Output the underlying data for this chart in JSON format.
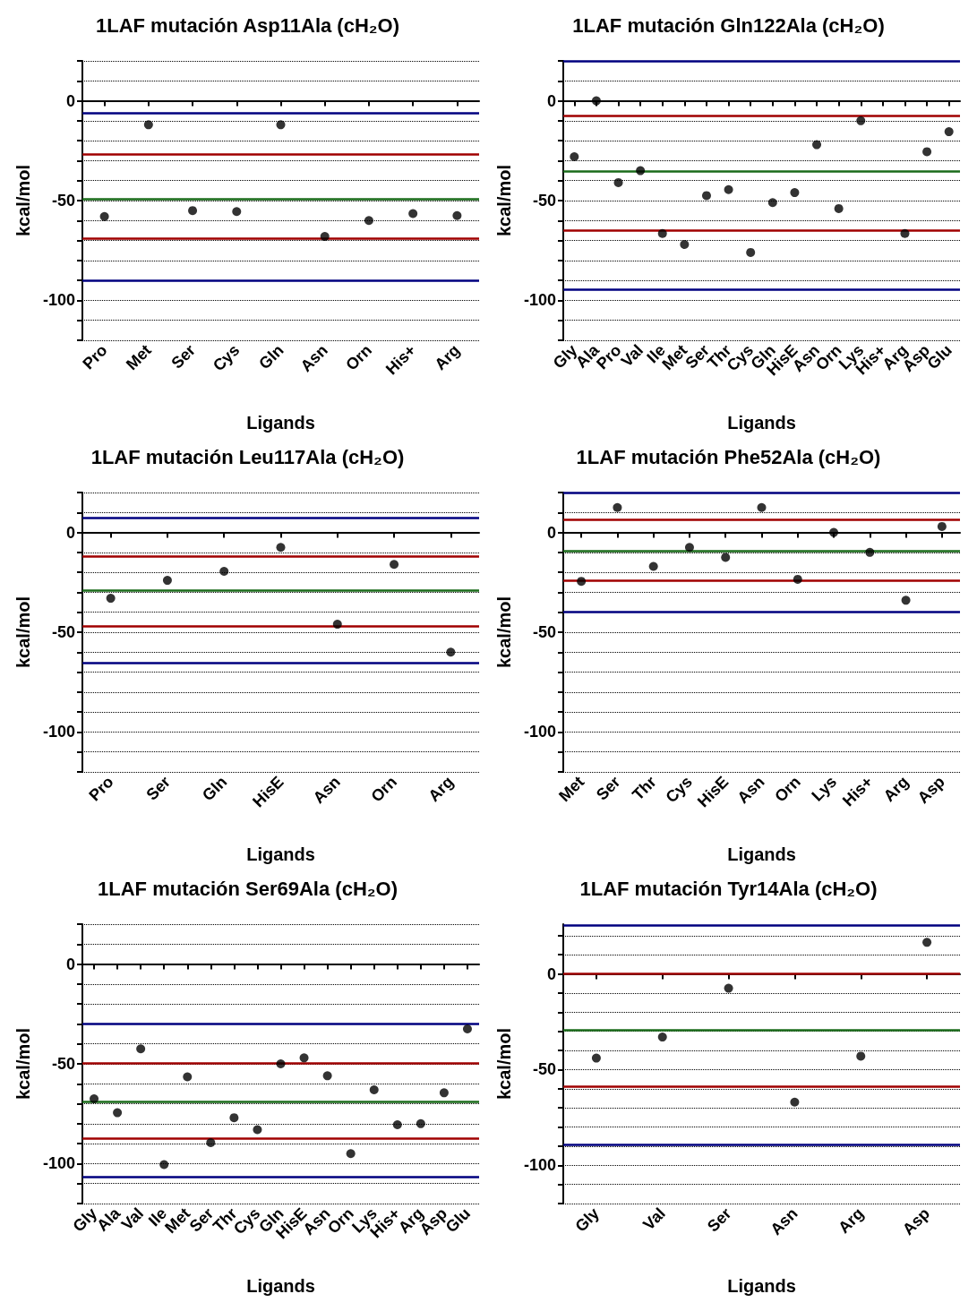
{
  "chart_data": [
    {
      "type": "scatter",
      "title": "1LAF mutación Asp11Ala (cH₂O)",
      "xlabel": "Ligands",
      "ylabel": "kcal/mol",
      "categories": [
        "Pro",
        "Met",
        "Ser",
        "Cys",
        "Gln",
        "Asn",
        "Orn",
        "His+",
        "Arg"
      ],
      "series": [
        {
          "color": "#000000",
          "values": [
            -58,
            -12,
            -55,
            -55.5,
            -12,
            -68,
            -60,
            -56.5,
            -57.5
          ]
        }
      ],
      "ylim": [
        -120,
        20
      ],
      "yticks": [
        {
          "value": -120,
          "label": null
        },
        {
          "value": -110,
          "label": null
        },
        -100,
        {
          "value": -90,
          "label": null
        },
        {
          "value": -80,
          "label": null
        },
        {
          "value": -70,
          "label": null
        },
        {
          "value": -60,
          "label": null
        },
        -50,
        {
          "value": -40,
          "label": null
        },
        {
          "value": -30,
          "label": null
        },
        {
          "value": -20,
          "label": null
        },
        {
          "value": -10,
          "label": null
        },
        0,
        {
          "value": 10,
          "label": null
        },
        {
          "value": 20,
          "label": null
        }
      ],
      "grid": "y",
      "marker": "circle",
      "ref_lines": [
        {
          "axis": "y",
          "value": -6,
          "color": "#00007f"
        },
        {
          "axis": "y",
          "value": -27,
          "color": "#a00000"
        },
        {
          "axis": "y",
          "value": -49,
          "color": "#1a6b1a"
        },
        {
          "axis": "y",
          "value": -69,
          "color": "#a00000"
        },
        {
          "axis": "y",
          "value": -90,
          "color": "#00007f"
        }
      ]
    },
    {
      "type": "scatter",
      "title": "1LAF mutación Gln122Ala (cH₂O)",
      "xlabel": "Ligands",
      "ylabel": "kcal/mol",
      "categories": [
        "Gly",
        "Ala",
        "Pro",
        "Val",
        "Ile",
        "Met",
        "Ser",
        "Thr",
        "Cys",
        "Gln",
        "HisE",
        "Asn",
        "Orn",
        "Lys",
        "His+",
        "Arg",
        "Asp",
        "Glu"
      ],
      "series": [
        {
          "color": "#000000",
          "values": [
            -28,
            0,
            -41,
            -35,
            -66.5,
            -72,
            -47.5,
            -44.5,
            -76,
            -51,
            -46,
            -22,
            -54,
            -10,
            null,
            -66.5,
            -25.5,
            -15.5
          ]
        }
      ],
      "ylim": [
        -120,
        20
      ],
      "yticks": [
        {
          "value": -120,
          "label": null
        },
        {
          "value": -110,
          "label": null
        },
        -100,
        {
          "value": -90,
          "label": null
        },
        {
          "value": -80,
          "label": null
        },
        {
          "value": -70,
          "label": null
        },
        {
          "value": -60,
          "label": null
        },
        -50,
        {
          "value": -40,
          "label": null
        },
        {
          "value": -30,
          "label": null
        },
        {
          "value": -20,
          "label": null
        },
        {
          "value": -10,
          "label": null
        },
        0,
        {
          "value": 10,
          "label": null
        },
        {
          "value": 20,
          "label": null
        }
      ],
      "grid": "y",
      "marker": "circle",
      "ref_lines": [
        {
          "axis": "y",
          "value": 20,
          "color": "#00007f"
        },
        {
          "axis": "y",
          "value": -7.5,
          "color": "#a00000"
        },
        {
          "axis": "y",
          "value": -35.5,
          "color": "#1a6b1a"
        },
        {
          "axis": "y",
          "value": -65,
          "color": "#a00000"
        },
        {
          "axis": "y",
          "value": -94.5,
          "color": "#00007f"
        }
      ]
    },
    {
      "type": "scatter",
      "title": "1LAF mutación Leu117Ala (cH₂O)",
      "xlabel": "Ligands",
      "ylabel": "kcal/mol",
      "categories": [
        "Pro",
        "Ser",
        "Gln",
        "HisE",
        "Asn",
        "Orn",
        "Arg"
      ],
      "series": [
        {
          "color": "#000000",
          "values": [
            -33,
            -24,
            -19.5,
            -7.5,
            -46,
            -16,
            -60
          ]
        }
      ],
      "ylim": [
        -120,
        20
      ],
      "yticks": [
        {
          "value": -120,
          "label": null
        },
        {
          "value": -110,
          "label": null
        },
        -100,
        {
          "value": -90,
          "label": null
        },
        {
          "value": -80,
          "label": null
        },
        {
          "value": -70,
          "label": null
        },
        {
          "value": -60,
          "label": null
        },
        -50,
        {
          "value": -40,
          "label": null
        },
        {
          "value": -30,
          "label": null
        },
        {
          "value": -20,
          "label": null
        },
        {
          "value": -10,
          "label": null
        },
        0,
        {
          "value": 10,
          "label": null
        },
        {
          "value": 20,
          "label": null
        }
      ],
      "grid": "y",
      "marker": "circle",
      "ref_lines": [
        {
          "axis": "y",
          "value": 7.5,
          "color": "#00007f"
        },
        {
          "axis": "y",
          "value": -12,
          "color": "#a00000"
        },
        {
          "axis": "y",
          "value": -29,
          "color": "#1a6b1a"
        },
        {
          "axis": "y",
          "value": -47,
          "color": "#a00000"
        },
        {
          "axis": "y",
          "value": -65.5,
          "color": "#00007f"
        }
      ]
    },
    {
      "type": "scatter",
      "title": "1LAF mutación Phe52Ala (cH₂O)",
      "xlabel": "Ligands",
      "ylabel": "kcal/mol",
      "categories": [
        "Met",
        "Ser",
        "Thr",
        "Cys",
        "HisE",
        "Asn",
        "Orn",
        "Lys",
        "His+",
        "Arg",
        "Asp"
      ],
      "series": [
        {
          "color": "#000000",
          "values": [
            -24.5,
            12.5,
            -17,
            -7.5,
            -12.5,
            12.5,
            -23.5,
            0,
            -10,
            -34,
            3
          ]
        }
      ],
      "ylim": [
        -120,
        20
      ],
      "yticks": [
        {
          "value": -120,
          "label": null
        },
        {
          "value": -110,
          "label": null
        },
        -100,
        {
          "value": -90,
          "label": null
        },
        {
          "value": -80,
          "label": null
        },
        {
          "value": -70,
          "label": null
        },
        {
          "value": -60,
          "label": null
        },
        -50,
        {
          "value": -40,
          "label": null
        },
        {
          "value": -30,
          "label": null
        },
        {
          "value": -20,
          "label": null
        },
        {
          "value": -10,
          "label": null
        },
        0,
        {
          "value": 10,
          "label": null
        },
        {
          "value": 20,
          "label": null
        }
      ],
      "grid": "y",
      "marker": "circle",
      "ref_lines": [
        {
          "axis": "y",
          "value": 20,
          "color": "#00007f"
        },
        {
          "axis": "y",
          "value": 6.5,
          "color": "#a00000"
        },
        {
          "axis": "y",
          "value": -9.5,
          "color": "#1a6b1a"
        },
        {
          "axis": "y",
          "value": -24,
          "color": "#a00000"
        },
        {
          "axis": "y",
          "value": -40,
          "color": "#00007f"
        }
      ]
    },
    {
      "type": "scatter",
      "title": "1LAF mutación Ser69Ala (cH₂O)",
      "xlabel": "Ligands",
      "ylabel": "kcal/mol",
      "categories": [
        "Gly",
        "Ala",
        "Val",
        "Ile",
        "Met",
        "Ser",
        "Thr",
        "Cys",
        "Gln",
        "HisE",
        "Asn",
        "Orn",
        "Lys",
        "His+",
        "Arg",
        "Asp",
        "Glu"
      ],
      "series": [
        {
          "color": "#000000",
          "values": [
            -67.5,
            -74.5,
            -42.5,
            -100.5,
            -56.5,
            -89.5,
            -77,
            -83,
            -50,
            -47,
            -56,
            -95,
            -63,
            -80.5,
            -80,
            -64.5,
            -32.5
          ]
        }
      ],
      "ylim": [
        -120,
        20
      ],
      "yticks": [
        {
          "value": -120,
          "label": null
        },
        {
          "value": -110,
          "label": null
        },
        -100,
        {
          "value": -90,
          "label": null
        },
        {
          "value": -80,
          "label": null
        },
        {
          "value": -70,
          "label": null
        },
        {
          "value": -60,
          "label": null
        },
        -50,
        {
          "value": -40,
          "label": null
        },
        {
          "value": -30,
          "label": null
        },
        {
          "value": -20,
          "label": null
        },
        {
          "value": -10,
          "label": null
        },
        0,
        {
          "value": 10,
          "label": null
        },
        {
          "value": 20,
          "label": null
        }
      ],
      "grid": "y",
      "marker": "circle",
      "ref_lines": [
        {
          "axis": "y",
          "value": -30,
          "color": "#00007f"
        },
        {
          "axis": "y",
          "value": -49.5,
          "color": "#a00000"
        },
        {
          "axis": "y",
          "value": -69,
          "color": "#1a6b1a"
        },
        {
          "axis": "y",
          "value": -87.5,
          "color": "#a00000"
        },
        {
          "axis": "y",
          "value": -106.5,
          "color": "#00007f"
        }
      ]
    },
    {
      "type": "scatter",
      "title": "1LAF mutación Tyr14Ala (cH₂O)",
      "xlabel": "Ligands",
      "ylabel": "kcal/mol",
      "categories": [
        "Gly",
        "Val",
        "Ser",
        "Asn",
        "Arg",
        "Asp"
      ],
      "series": [
        {
          "color": "#000000",
          "values": [
            -44,
            -33,
            -7.5,
            -67,
            -43,
            16.5
          ]
        }
      ],
      "ylim": [
        -120,
        26
      ],
      "yticks": [
        {
          "value": -120,
          "label": null
        },
        {
          "value": -110,
          "label": null
        },
        -100,
        {
          "value": -90,
          "label": null
        },
        {
          "value": -80,
          "label": null
        },
        {
          "value": -70,
          "label": null
        },
        {
          "value": -60,
          "label": null
        },
        -50,
        {
          "value": -40,
          "label": null
        },
        {
          "value": -30,
          "label": null
        },
        {
          "value": -20,
          "label": null
        },
        {
          "value": -10,
          "label": null
        },
        0,
        {
          "value": 10,
          "label": null
        },
        {
          "value": 20,
          "label": null
        }
      ],
      "grid": "y",
      "marker": "circle",
      "ref_lines": [
        {
          "axis": "y",
          "value": 25.5,
          "color": "#00007f"
        },
        {
          "axis": "y",
          "value": 0,
          "color": "#a00000"
        },
        {
          "axis": "y",
          "value": -29.5,
          "color": "#1a6b1a"
        },
        {
          "axis": "y",
          "value": -59,
          "color": "#a00000"
        },
        {
          "axis": "y",
          "value": -89,
          "color": "#00007f"
        }
      ]
    }
  ]
}
